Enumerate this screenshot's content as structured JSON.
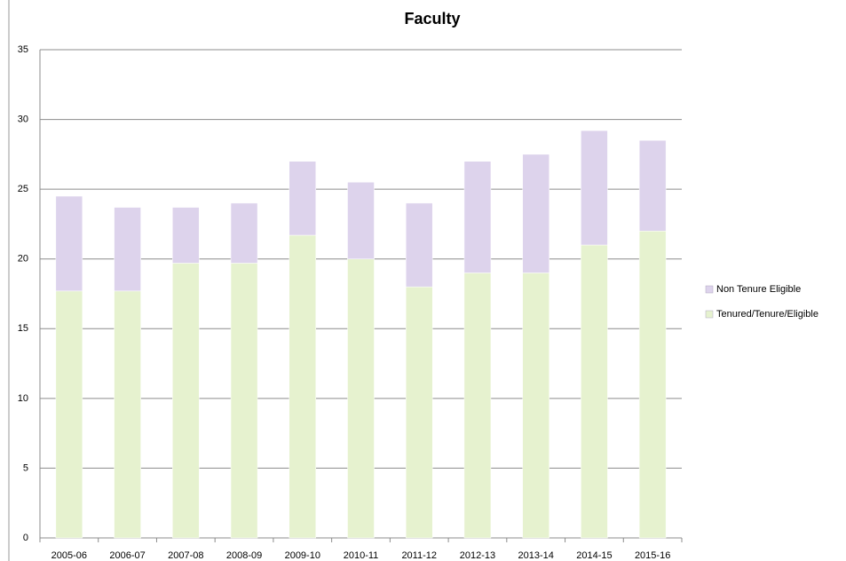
{
  "chart_data": {
    "type": "stacked_bar",
    "title": "Faculty",
    "categories": [
      "2005-06",
      "2006-07",
      "2007-08",
      "2008-09",
      "2009-10",
      "2010-11",
      "2011-12",
      "2012-13",
      "2013-14",
      "2014-15",
      "2015-16"
    ],
    "series": [
      {
        "name": "Tenured/Tenure/Eligible",
        "color": "#e6f2cf",
        "values": [
          17.7,
          17.7,
          19.7,
          19.7,
          21.7,
          20,
          18,
          19,
          19,
          21,
          22
        ]
      },
      {
        "name": "Non Tenure Eligible",
        "color": "#ddd3ec",
        "values": [
          6.8,
          6,
          4,
          4.3,
          5.3,
          5.5,
          6,
          8,
          8.5,
          8.2,
          6.5
        ]
      }
    ],
    "ylim": [
      0,
      35
    ],
    "yticks": [
      0,
      5,
      10,
      15,
      20,
      25,
      30,
      35
    ],
    "grid": true,
    "legend": "right"
  }
}
